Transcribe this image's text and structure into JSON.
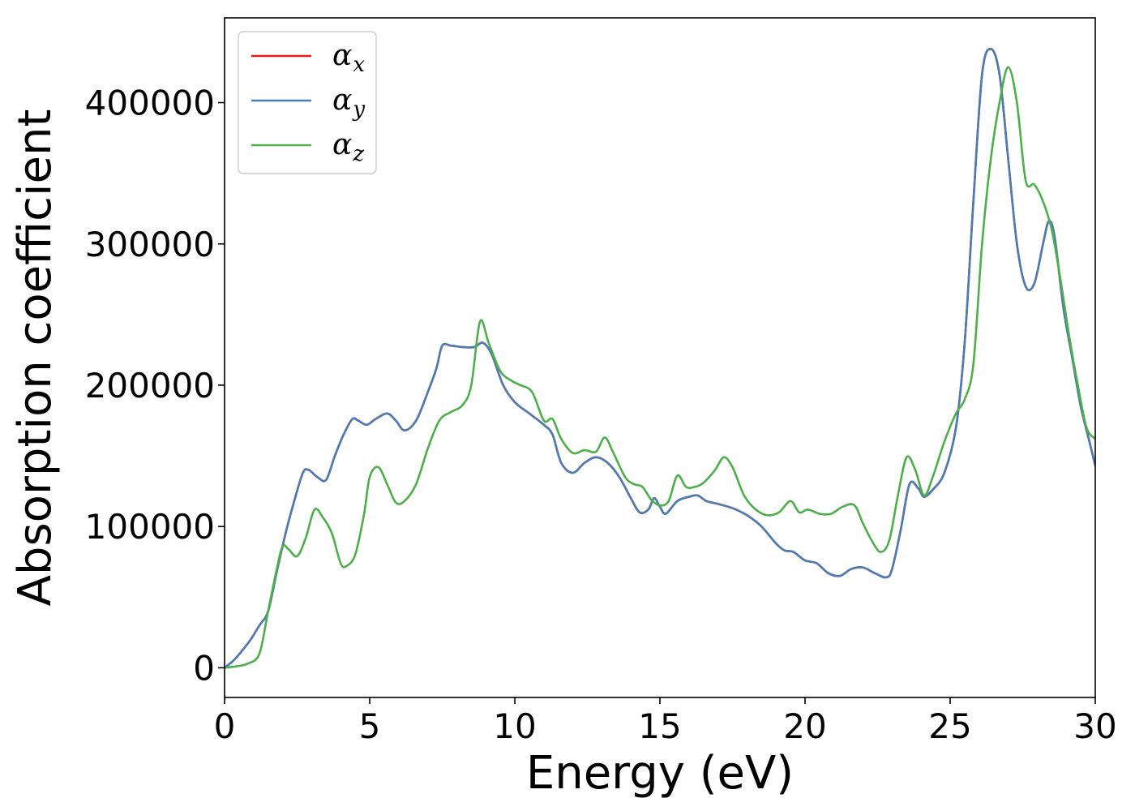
{
  "chart_data": {
    "type": "line",
    "title": "",
    "xlabel": "Energy (eV)",
    "ylabel": "Absorption coefficient",
    "xlim": [
      0,
      30
    ],
    "ylim": [
      -21000,
      460000
    ],
    "x_ticks": [
      0,
      5,
      10,
      15,
      20,
      25,
      30
    ],
    "y_ticks": [
      0,
      100000,
      200000,
      300000,
      400000
    ],
    "x_tick_labels": [
      "0",
      "5",
      "10",
      "15",
      "20",
      "25",
      "30"
    ],
    "y_tick_labels": [
      "0",
      "100000",
      "200000",
      "300000",
      "400000"
    ],
    "grid": false,
    "legend_position": "top-left",
    "series": [
      {
        "name": "αx",
        "symbol": "α",
        "subscript": "x",
        "color": "#e41a1c",
        "x": [
          0,
          0.3,
          0.6,
          0.9,
          1.2,
          1.5,
          1.8,
          2.1,
          2.4,
          2.7,
          2.9,
          3.2,
          3.5,
          3.8,
          4.1,
          4.4,
          4.6,
          4.9,
          5.2,
          5.6,
          5.9,
          6.2,
          6.6,
          7.0,
          7.3,
          7.5,
          7.8,
          8.2,
          8.6,
          8.9,
          9.2,
          9.6,
          10.0,
          10.5,
          11.0,
          11.3,
          11.6,
          12.0,
          12.4,
          12.8,
          13.2,
          13.6,
          14.0,
          14.3,
          14.6,
          14.8,
          15.0,
          15.2,
          15.6,
          16.0,
          16.3,
          16.6,
          17.0,
          17.5,
          18.0,
          18.5,
          19.0,
          19.3,
          19.6,
          20.0,
          20.4,
          20.8,
          21.2,
          21.6,
          22.0,
          22.4,
          22.8,
          23.0,
          23.3,
          23.6,
          23.9,
          24.1,
          24.4,
          24.8,
          25.2,
          25.5,
          25.8,
          26.1,
          26.4,
          26.7,
          27.0,
          27.3,
          27.6,
          27.9,
          28.2,
          28.4,
          28.6,
          28.9,
          29.2,
          29.5,
          29.8,
          30.0
        ],
        "values": [
          0,
          5000,
          12000,
          20000,
          30000,
          40000,
          68000,
          95000,
          118000,
          138000,
          140000,
          135000,
          133000,
          150000,
          165000,
          176000,
          175000,
          172000,
          176000,
          180000,
          175000,
          168000,
          175000,
          195000,
          212000,
          228000,
          228000,
          227000,
          227000,
          230000,
          222000,
          200000,
          188000,
          180000,
          172000,
          165000,
          145000,
          138000,
          145000,
          149000,
          145000,
          135000,
          120000,
          110000,
          112000,
          120000,
          114000,
          109000,
          118000,
          121000,
          122000,
          118000,
          116000,
          113000,
          108000,
          100000,
          88000,
          83000,
          82000,
          76000,
          74000,
          67000,
          65000,
          70000,
          71000,
          67000,
          64000,
          70000,
          98000,
          130000,
          127000,
          121000,
          126000,
          138000,
          170000,
          230000,
          330000,
          420000,
          438000,
          420000,
          360000,
          300000,
          270000,
          272000,
          300000,
          316000,
          305000,
          255000,
          220000,
          185000,
          160000,
          143000
        ]
      },
      {
        "name": "αy",
        "symbol": "α",
        "subscript": "y",
        "color": "#4a7db6",
        "x": [
          0,
          0.3,
          0.6,
          0.9,
          1.2,
          1.5,
          1.8,
          2.1,
          2.4,
          2.7,
          2.9,
          3.2,
          3.5,
          3.8,
          4.1,
          4.4,
          4.6,
          4.9,
          5.2,
          5.6,
          5.9,
          6.2,
          6.6,
          7.0,
          7.3,
          7.5,
          7.8,
          8.2,
          8.6,
          8.9,
          9.2,
          9.6,
          10.0,
          10.5,
          11.0,
          11.3,
          11.6,
          12.0,
          12.4,
          12.8,
          13.2,
          13.6,
          14.0,
          14.3,
          14.6,
          14.8,
          15.0,
          15.2,
          15.6,
          16.0,
          16.3,
          16.6,
          17.0,
          17.5,
          18.0,
          18.5,
          19.0,
          19.3,
          19.6,
          20.0,
          20.4,
          20.8,
          21.2,
          21.6,
          22.0,
          22.4,
          22.8,
          23.0,
          23.3,
          23.6,
          23.9,
          24.1,
          24.4,
          24.8,
          25.2,
          25.5,
          25.8,
          26.1,
          26.4,
          26.7,
          27.0,
          27.3,
          27.6,
          27.9,
          28.2,
          28.4,
          28.6,
          28.9,
          29.2,
          29.5,
          29.8,
          30.0
        ],
        "values": [
          0,
          5000,
          12000,
          20000,
          30000,
          40000,
          68000,
          95000,
          118000,
          138000,
          140000,
          135000,
          133000,
          150000,
          165000,
          176000,
          175000,
          172000,
          176000,
          180000,
          175000,
          168000,
          175000,
          195000,
          212000,
          228000,
          228000,
          227000,
          227000,
          230000,
          222000,
          200000,
          188000,
          180000,
          172000,
          165000,
          145000,
          138000,
          145000,
          149000,
          145000,
          135000,
          120000,
          110000,
          112000,
          120000,
          114000,
          109000,
          118000,
          121000,
          122000,
          118000,
          116000,
          113000,
          108000,
          100000,
          88000,
          83000,
          82000,
          76000,
          74000,
          67000,
          65000,
          70000,
          71000,
          67000,
          64000,
          70000,
          98000,
          130000,
          127000,
          121000,
          126000,
          138000,
          170000,
          230000,
          330000,
          420000,
          438000,
          420000,
          360000,
          300000,
          270000,
          272000,
          300000,
          316000,
          305000,
          255000,
          220000,
          185000,
          160000,
          143000
        ]
      },
      {
        "name": "αz",
        "symbol": "α",
        "subscript": "z",
        "color": "#4daf4a",
        "x": [
          0,
          0.4,
          0.8,
          1.2,
          1.5,
          1.8,
          2.0,
          2.2,
          2.5,
          2.8,
          3.1,
          3.4,
          3.7,
          4.0,
          4.2,
          4.5,
          4.8,
          5.0,
          5.3,
          5.6,
          5.9,
          6.2,
          6.6,
          7.0,
          7.4,
          7.8,
          8.2,
          8.5,
          8.8,
          9.1,
          9.5,
          9.9,
          10.2,
          10.6,
          11.0,
          11.3,
          11.6,
          12.0,
          12.4,
          12.8,
          13.1,
          13.4,
          13.8,
          14.1,
          14.4,
          14.7,
          15.0,
          15.3,
          15.6,
          15.9,
          16.2,
          16.5,
          16.9,
          17.2,
          17.5,
          17.9,
          18.3,
          18.7,
          19.1,
          19.5,
          19.8,
          20.1,
          20.5,
          20.9,
          21.3,
          21.7,
          22.0,
          22.3,
          22.6,
          22.9,
          23.2,
          23.5,
          23.8,
          24.1,
          24.4,
          24.8,
          25.2,
          25.5,
          25.8,
          26.1,
          26.4,
          26.7,
          27.0,
          27.3,
          27.6,
          27.9,
          28.2,
          28.5,
          28.8,
          29.1,
          29.4,
          29.7,
          30.0
        ],
        "values": [
          0,
          1000,
          3000,
          10000,
          40000,
          70000,
          86000,
          84000,
          79000,
          92000,
          112000,
          106000,
          95000,
          74000,
          72000,
          80000,
          108000,
          135000,
          142000,
          130000,
          117000,
          118000,
          130000,
          155000,
          175000,
          181000,
          186000,
          200000,
          245000,
          230000,
          210000,
          203000,
          200000,
          195000,
          175000,
          176000,
          162000,
          152000,
          154000,
          153000,
          163000,
          152000,
          135000,
          130000,
          128000,
          119000,
          115000,
          118000,
          136000,
          128000,
          128000,
          131000,
          140000,
          149000,
          142000,
          122000,
          112000,
          108000,
          110000,
          118000,
          110000,
          112000,
          109000,
          109000,
          114000,
          115000,
          102000,
          90000,
          82000,
          90000,
          122000,
          149000,
          140000,
          122000,
          135000,
          160000,
          180000,
          190000,
          215000,
          300000,
          360000,
          400000,
          425000,
          400000,
          345000,
          342000,
          330000,
          310000,
          275000,
          235000,
          200000,
          170000,
          162000
        ]
      }
    ]
  }
}
